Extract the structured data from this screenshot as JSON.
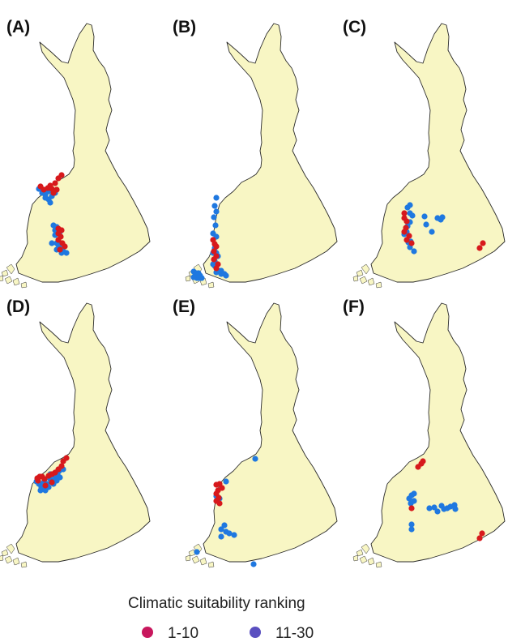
{
  "colors": {
    "land": "#f8f6c4",
    "outline": "#2a2a2a",
    "rank_1_10_points": "#d7191c",
    "rank_11_30_points": "#1f78e0",
    "legend_1_10": "#c8175d",
    "legend_11_30": "#5a4fc0"
  },
  "panels": [
    {
      "label": "(A)",
      "sites": [
        {
          "rank": "1-10",
          "count": 18
        },
        {
          "rank": "11-30",
          "count": 22
        }
      ]
    },
    {
      "label": "(B)",
      "sites": [
        {
          "rank": "1-10",
          "count": 8
        },
        {
          "rank": "11-30",
          "count": 30
        }
      ]
    },
    {
      "label": "(C)",
      "sites": [
        {
          "rank": "1-10",
          "count": 10
        },
        {
          "rank": "11-30",
          "count": 18
        }
      ]
    },
    {
      "label": "(D)",
      "sites": [
        {
          "rank": "1-10",
          "count": 14
        },
        {
          "rank": "11-30",
          "count": 20
        }
      ]
    },
    {
      "label": "(E)",
      "sites": [
        {
          "rank": "1-10",
          "count": 8
        },
        {
          "rank": "11-30",
          "count": 12
        }
      ]
    },
    {
      "label": "(F)",
      "sites": [
        {
          "rank": "1-10",
          "count": 6
        },
        {
          "rank": "11-30",
          "count": 16
        }
      ]
    }
  ],
  "legend": {
    "title": "Climatic suitability ranking",
    "items": [
      {
        "label": "1-10",
        "color_key": "legend_1_10"
      },
      {
        "label": "11-30",
        "color_key": "legend_11_30"
      }
    ]
  }
}
